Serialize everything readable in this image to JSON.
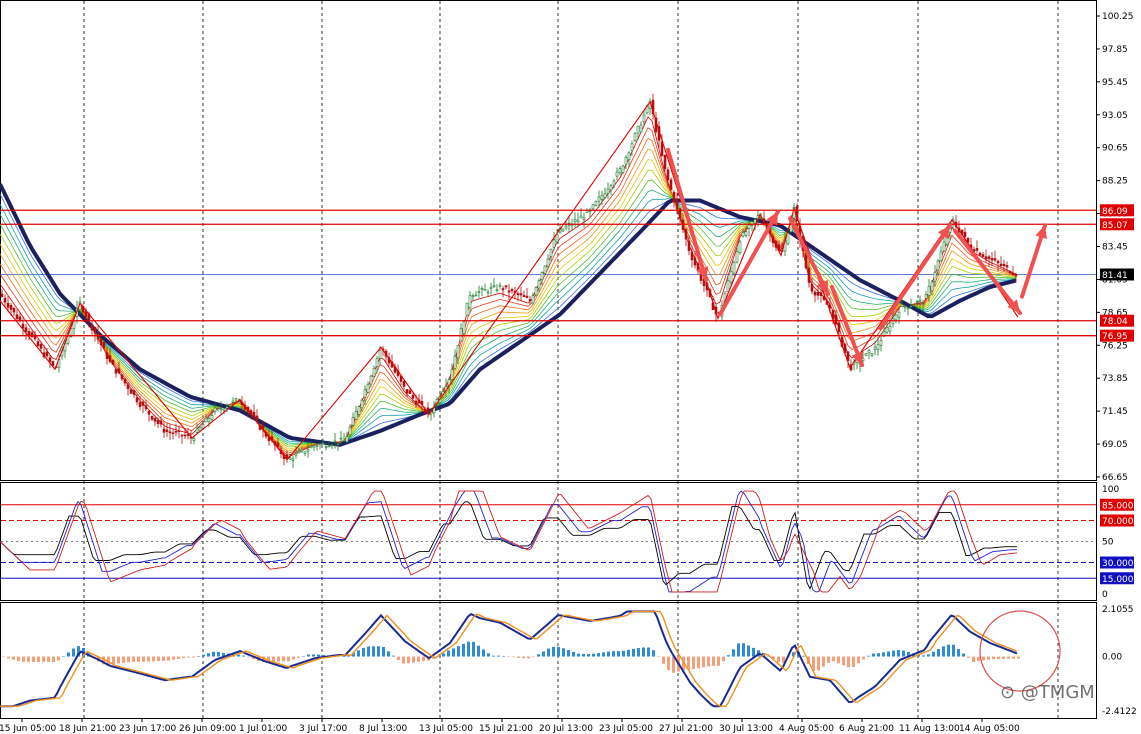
{
  "chart_data": {
    "type": "candlestick",
    "price_panel": {
      "ylim": [
        66.65,
        100.25
      ],
      "y_ticks": [
        "100.25",
        "97.85",
        "95.45",
        "93.05",
        "90.65",
        "88.25",
        "85.85",
        "83.45",
        "81.05",
        "78.65",
        "76.25",
        "73.85",
        "71.45",
        "69.05",
        "66.65"
      ],
      "current_price": "81.41",
      "levels": [
        {
          "label": "86.09",
          "value": 86.09
        },
        {
          "label": "85.07",
          "value": 85.07
        },
        {
          "label": "78.04",
          "value": 78.04
        },
        {
          "label": "76.95",
          "value": 76.95
        }
      ],
      "zigzag": [
        [
          0,
          79.5
        ],
        [
          55,
          74.5
        ],
        [
          80,
          79.3
        ],
        [
          192,
          69.5
        ],
        [
          240,
          72.3
        ],
        [
          287,
          67.9
        ],
        [
          381,
          76.1
        ],
        [
          429,
          71.2
        ],
        [
          558,
          84.5
        ],
        [
          650,
          94.0
        ],
        [
          718,
          78.2
        ],
        [
          760,
          85.8
        ],
        [
          781,
          82.8
        ],
        [
          794,
          86.2
        ],
        [
          850,
          74.6
        ],
        [
          952,
          85.4
        ],
        [
          1018,
          78.3
        ]
      ],
      "arrows": [
        [
          [
            668,
            90.5
          ],
          [
            706,
            81.0
          ]
        ],
        [
          [
            720,
            78.5
          ],
          [
            778,
            86.0
          ]
        ],
        [
          [
            790,
            85.5
          ],
          [
            828,
            80.0
          ]
        ],
        [
          [
            832,
            80.5
          ],
          [
            862,
            74.8
          ]
        ],
        [
          [
            880,
            77.5
          ],
          [
            950,
            85.0
          ]
        ],
        [
          [
            955,
            84.6
          ],
          [
            1020,
            78.6
          ]
        ],
        [
          [
            1022,
            79.8
          ],
          [
            1045,
            85.0
          ]
        ]
      ]
    },
    "oscillator_panel": {
      "ylim": [
        0,
        100
      ],
      "y_ticks": [
        "100",
        "50",
        "0"
      ],
      "levels": [
        {
          "label": "85.0000",
          "value": 85
        },
        {
          "label": "70.0000",
          "value": 70
        },
        {
          "label": "30.0000",
          "value": 30
        },
        {
          "label": "15.0000",
          "value": 15
        }
      ],
      "midline": 50
    },
    "macd_panel": {
      "ylim": [
        -2.4122,
        2.1055
      ],
      "y_ticks": [
        "2.1055",
        "0.00",
        "-2.4122"
      ]
    },
    "x_ticks": [
      "15 Jun 05:00",
      "18 Jun 21:00",
      "23 Jun 17:00",
      "26 Jun 09:00",
      "1 Jul 01:00",
      "3 Jul 17:00",
      "8 Jul 13:00",
      "13 Jul 05:00",
      "15 Jul 21:00",
      "20 Jul 13:00",
      "23 Jul 05:00",
      "27 Jul 21:00",
      "30 Jul 13:00",
      "4 Aug 05:00",
      "6 Aug 21:00",
      "11 Aug 13:00",
      "14 Aug 05:00"
    ],
    "price_path": [
      [
        0,
        80.0
      ],
      [
        20,
        78.0
      ],
      [
        55,
        74.5
      ],
      [
        80,
        79.3
      ],
      [
        110,
        75.0
      ],
      [
        140,
        72.0
      ],
      [
        165,
        70.0
      ],
      [
        192,
        69.5
      ],
      [
        215,
        71.5
      ],
      [
        240,
        72.3
      ],
      [
        265,
        69.8
      ],
      [
        287,
        67.9
      ],
      [
        315,
        69.0
      ],
      [
        345,
        69.3
      ],
      [
        365,
        73.0
      ],
      [
        381,
        76.1
      ],
      [
        405,
        73.0
      ],
      [
        429,
        71.2
      ],
      [
        450,
        74.0
      ],
      [
        470,
        80.0
      ],
      [
        500,
        80.5
      ],
      [
        530,
        79.5
      ],
      [
        558,
        84.5
      ],
      [
        590,
        86.0
      ],
      [
        620,
        89.0
      ],
      [
        650,
        94.0
      ],
      [
        665,
        89.0
      ],
      [
        690,
        83.0
      ],
      [
        718,
        78.2
      ],
      [
        740,
        84.0
      ],
      [
        760,
        85.8
      ],
      [
        781,
        82.8
      ],
      [
        794,
        86.2
      ],
      [
        810,
        80.5
      ],
      [
        830,
        79.0
      ],
      [
        850,
        74.6
      ],
      [
        875,
        76.0
      ],
      [
        900,
        79.0
      ],
      [
        925,
        79.5
      ],
      [
        952,
        85.4
      ],
      [
        970,
        83.5
      ],
      [
        990,
        82.5
      ],
      [
        1018,
        81.4
      ]
    ],
    "ma_path": [
      [
        0,
        88.0
      ],
      [
        30,
        83.5
      ],
      [
        60,
        80.0
      ],
      [
        100,
        77.0
      ],
      [
        140,
        74.5
      ],
      [
        190,
        72.5
      ],
      [
        240,
        71.5
      ],
      [
        290,
        69.5
      ],
      [
        340,
        69.0
      ],
      [
        380,
        70.0
      ],
      [
        420,
        71.2
      ],
      [
        450,
        72.0
      ],
      [
        480,
        74.5
      ],
      [
        520,
        76.5
      ],
      [
        560,
        78.5
      ],
      [
        600,
        81.5
      ],
      [
        640,
        84.5
      ],
      [
        670,
        86.8
      ],
      [
        700,
        86.8
      ],
      [
        740,
        85.6
      ],
      [
        780,
        85.0
      ],
      [
        820,
        83.0
      ],
      [
        860,
        81.0
      ],
      [
        900,
        79.5
      ],
      [
        930,
        78.3
      ],
      [
        960,
        79.5
      ],
      [
        990,
        80.5
      ],
      [
        1018,
        81.0
      ]
    ]
  }
}
